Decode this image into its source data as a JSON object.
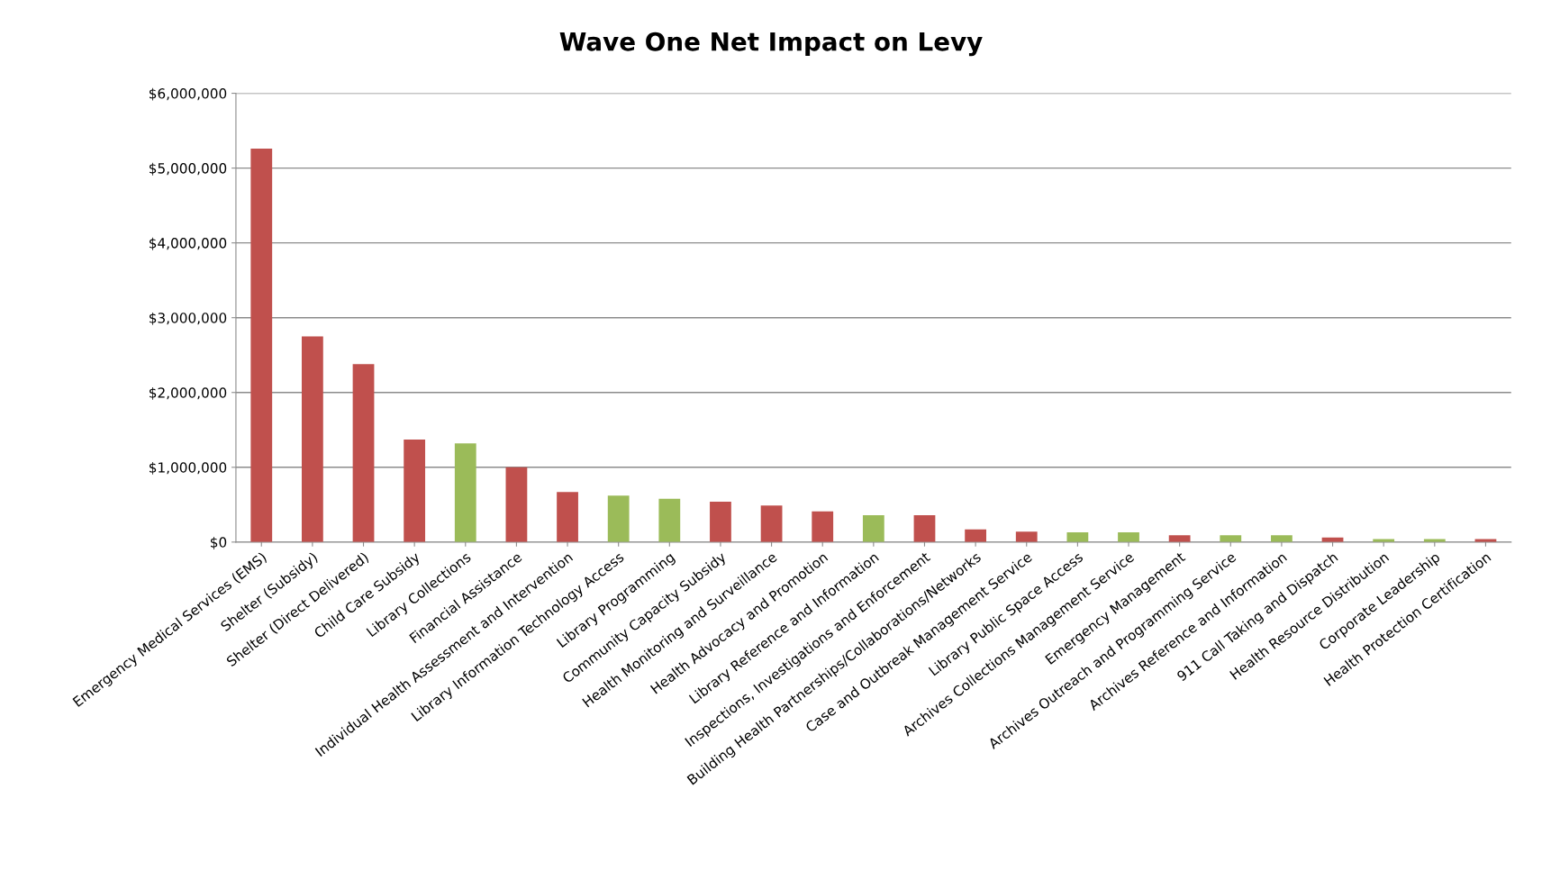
{
  "chart_data": {
    "type": "bar",
    "title": "Wave One Net Impact on Levy",
    "categories": [
      "Emergency Medical Services (EMS)",
      "Shelter (Subsidy)",
      "Shelter (Direct Delivered)",
      "Child Care Subsidy",
      "Library Collections",
      "Financial Assistance",
      "Individual Health Assessment and Intervention",
      "Library Information Technology Access",
      "Library Programming",
      "Community Capacity Subsidy",
      "Health Monitoring and Surveillance",
      "Health Advocacy and Promotion",
      "Library Reference and Information",
      "Inspections, Investigations and Enforcement",
      "Building Health Partnerships/Collaborations/Networks",
      "Case and Outbreak Management Service",
      "Library Public Space Access",
      "Archives Collections Management Service",
      "Emergency Management",
      "Archives Outreach and Programming Service",
      "Archives Reference and Information",
      "911 Call Taking and Dispatch",
      "Health Resource Distribution",
      "Corporate Leadership",
      "Health Protection Certification"
    ],
    "values": [
      5260000,
      2750000,
      2380000,
      1370000,
      1320000,
      1000000,
      670000,
      620000,
      580000,
      540000,
      490000,
      410000,
      360000,
      360000,
      170000,
      140000,
      130000,
      130000,
      90000,
      90000,
      90000,
      60000,
      40000,
      40000,
      40000
    ],
    "colors": [
      "#c0504d",
      "#c0504d",
      "#c0504d",
      "#c0504d",
      "#9bbb59",
      "#c0504d",
      "#c0504d",
      "#9bbb59",
      "#9bbb59",
      "#c0504d",
      "#c0504d",
      "#c0504d",
      "#9bbb59",
      "#c0504d",
      "#c0504d",
      "#c0504d",
      "#9bbb59",
      "#9bbb59",
      "#c0504d",
      "#9bbb59",
      "#9bbb59",
      "#c0504d",
      "#9bbb59",
      "#9bbb59",
      "#c0504d"
    ],
    "ylim": [
      0,
      6000000
    ],
    "yticks": [
      {
        "value": 0,
        "label": "$0"
      },
      {
        "value": 1000000,
        "label": "$1,000,000"
      },
      {
        "value": 2000000,
        "label": "$2,000,000"
      },
      {
        "value": 3000000,
        "label": "$3,000,000"
      },
      {
        "value": 4000000,
        "label": "$4,000,000"
      },
      {
        "value": 5000000,
        "label": "$5,000,000"
      },
      {
        "value": 6000000,
        "label": "$6,000,000"
      }
    ],
    "grid": "y",
    "legend": false
  }
}
